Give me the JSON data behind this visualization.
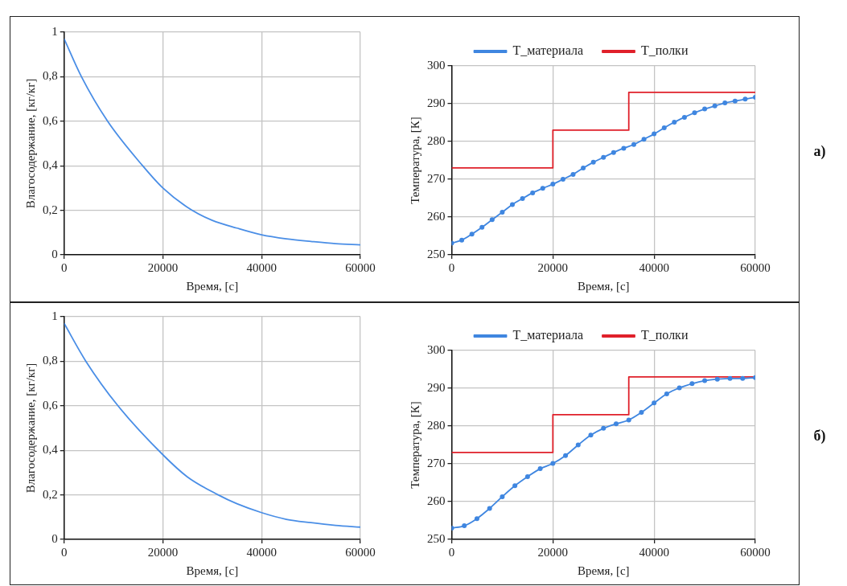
{
  "chart_data": [
    {
      "type": "line",
      "xlabel": "Время, [с]",
      "ylabel": "Влагосодержание, [кг/кг]",
      "xlim": [
        0,
        60000
      ],
      "xticks": [
        0,
        20000,
        40000,
        60000
      ],
      "ylim": [
        0,
        1
      ],
      "yticks": [
        0,
        {
          "value": 0.2,
          "label": "0,2"
        },
        {
          "value": 0.4,
          "label": "0,4"
        },
        {
          "value": 0.6,
          "label": "0,6"
        },
        {
          "value": 0.8,
          "label": "0,8"
        },
        1
      ],
      "grid": true,
      "series": [
        {
          "color": "#4a8ee6",
          "x": [
            0,
            3500,
            8800,
            15900,
            20000,
            25900,
            30000,
            35000,
            40000,
            45000,
            50000,
            55000,
            60000
          ],
          "values": [
            0.97,
            0.8,
            0.6,
            0.4,
            0.3,
            0.2,
            0.155,
            0.12,
            0.09,
            0.072,
            0.06,
            0.05,
            0.045
          ]
        }
      ]
    },
    {
      "type": "line",
      "xlabel": "Время, [с]",
      "ylabel": "Температура, [К]",
      "xlim": [
        0,
        60000
      ],
      "xticks": [
        0,
        20000,
        40000,
        60000
      ],
      "ylim": [
        250,
        300
      ],
      "yticks": [
        250,
        260,
        270,
        280,
        290,
        300
      ],
      "grid": true,
      "legend": "top",
      "annotations": [
        "а)"
      ],
      "series": [
        {
          "name": "T_материала",
          "color": "#3f86e0",
          "marker": "circle",
          "x": [
            0,
            2000,
            4000,
            6000,
            8000,
            10000,
            12000,
            14000,
            16000,
            18000,
            20000,
            22000,
            24000,
            26000,
            28000,
            30000,
            32000,
            34000,
            36000,
            38000,
            40000,
            42000,
            44000,
            46000,
            48000,
            50000,
            52000,
            54000,
            56000,
            58000,
            60000
          ],
          "values": [
            253.1,
            253.9,
            255.5,
            257.3,
            259.3,
            261.3,
            263.3,
            264.9,
            266.4,
            267.6,
            268.7,
            270,
            271.3,
            273,
            274.5,
            275.8,
            277.1,
            278.2,
            279.2,
            280.6,
            282,
            283.6,
            285.1,
            286.4,
            287.6,
            288.6,
            289.4,
            290.2,
            290.7,
            291.2,
            291.7
          ]
        },
        {
          "name": "T_полки",
          "type": "step",
          "color": "#e0202a",
          "x": [
            0,
            20000,
            35000,
            60000
          ],
          "values": [
            273,
            283,
            293,
            293
          ]
        }
      ]
    },
    {
      "type": "line",
      "xlabel": "Время, [с]",
      "ylabel": "Влагосодержание, [кг/кг]",
      "xlim": [
        0,
        60000
      ],
      "xticks": [
        0,
        20000,
        40000,
        60000
      ],
      "ylim": [
        0,
        1
      ],
      "yticks": [
        0,
        {
          "value": 0.2,
          "label": "0,2"
        },
        {
          "value": 0.4,
          "label": "0,4"
        },
        {
          "value": 0.6,
          "label": "0,6"
        },
        {
          "value": 0.8,
          "label": "0,8"
        },
        1
      ],
      "grid": true,
      "series": [
        {
          "color": "#4a8ee6",
          "x": [
            0,
            4400,
            10900,
            20000,
            25000,
            31200,
            35000,
            40000,
            45000,
            50000,
            55000,
            60000
          ],
          "values": [
            0.97,
            0.8,
            0.6,
            0.38,
            0.28,
            0.2,
            0.16,
            0.12,
            0.09,
            0.075,
            0.063,
            0.055
          ]
        }
      ]
    },
    {
      "type": "line",
      "xlabel": "Время, [с]",
      "ylabel": "Температура, [К]",
      "xlim": [
        0,
        60000
      ],
      "xticks": [
        0,
        20000,
        40000,
        60000
      ],
      "ylim": [
        250,
        300
      ],
      "yticks": [
        250,
        260,
        270,
        280,
        290,
        300
      ],
      "grid": true,
      "legend": "top",
      "annotations": [
        "б)"
      ],
      "series": [
        {
          "name": "T_материала",
          "color": "#3f86e0",
          "marker": "circle",
          "x": [
            0,
            2500,
            5000,
            7500,
            10000,
            12500,
            15000,
            17500,
            20000,
            22500,
            25000,
            27500,
            30000,
            32500,
            35000,
            37500,
            40000,
            42500,
            45000,
            47500,
            50000,
            52500,
            55000,
            57500,
            60000
          ],
          "values": [
            253,
            253.6,
            255.5,
            258.2,
            261.3,
            264.2,
            266.6,
            268.7,
            270.1,
            272.2,
            275,
            277.6,
            279.4,
            280.6,
            281.6,
            283.6,
            286.1,
            288.5,
            290.1,
            291.2,
            292,
            292.4,
            292.6,
            292.6,
            292.8
          ]
        },
        {
          "name": "T_полки",
          "type": "step",
          "color": "#e0202a",
          "x": [
            0,
            20000,
            35000,
            60000
          ],
          "values": [
            273,
            283,
            293,
            293
          ]
        }
      ]
    }
  ]
}
